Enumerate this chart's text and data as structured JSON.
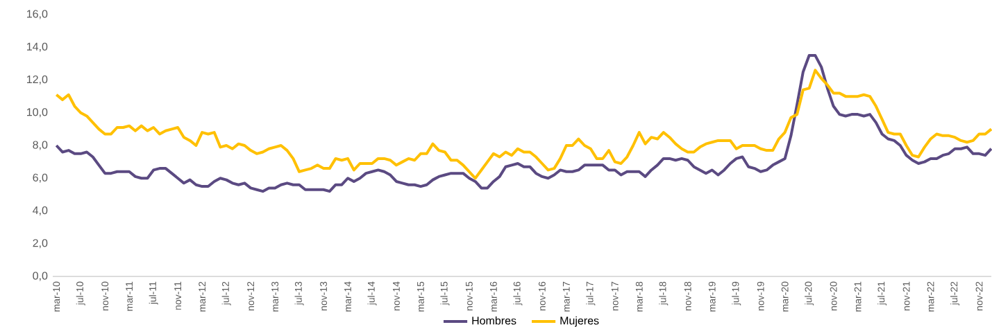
{
  "chart_data": {
    "type": "line",
    "categories": [
      "mar-10",
      null,
      null,
      null,
      "jul-10",
      null,
      null,
      null,
      "nov-10",
      null,
      null,
      null,
      "mar-11",
      null,
      null,
      null,
      "jul-11",
      null,
      null,
      null,
      "nov-11",
      null,
      null,
      null,
      "mar-12",
      null,
      null,
      null,
      "jul-12",
      null,
      null,
      null,
      "nov-12",
      null,
      null,
      null,
      "mar-13",
      null,
      null,
      null,
      "jul-13",
      null,
      null,
      null,
      "nov-13",
      null,
      null,
      null,
      "mar-14",
      null,
      null,
      null,
      "jul-14",
      null,
      null,
      null,
      "nov-14",
      null,
      null,
      null,
      "mar-15",
      null,
      null,
      null,
      "jul-15",
      null,
      null,
      null,
      "nov-15",
      null,
      null,
      null,
      "mar-16",
      null,
      null,
      null,
      "jul-16",
      null,
      null,
      null,
      "nov-16",
      null,
      null,
      null,
      "mar-17",
      null,
      null,
      null,
      "jul-17",
      null,
      null,
      null,
      "nov-17",
      null,
      null,
      null,
      "mar-18",
      null,
      null,
      null,
      "jul-18",
      null,
      null,
      null,
      "nov-18",
      null,
      null,
      null,
      "mar-19",
      null,
      null,
      null,
      "jul-19",
      null,
      null,
      null,
      "nov-19",
      null,
      null,
      null,
      "mar-20",
      null,
      null,
      null,
      "jul-20",
      null,
      null,
      null,
      "nov-20",
      null,
      null,
      null,
      "mar-21",
      null,
      null,
      null,
      "jul-21",
      null,
      null,
      null,
      "nov-21",
      null,
      null,
      null,
      "mar-22",
      null,
      null,
      null,
      "jul-22",
      null,
      null,
      null,
      "nov-22",
      null,
      null
    ],
    "series": [
      {
        "name": "Hombres",
        "color": "#5b4a82",
        "values": [
          8.0,
          7.6,
          7.7,
          7.5,
          7.5,
          7.6,
          7.3,
          6.8,
          6.3,
          6.3,
          6.4,
          6.4,
          6.4,
          6.1,
          6.0,
          6.0,
          6.5,
          6.6,
          6.6,
          6.3,
          6.0,
          5.7,
          5.9,
          5.6,
          5.5,
          5.5,
          5.8,
          6.0,
          5.9,
          5.7,
          5.6,
          5.7,
          5.4,
          5.3,
          5.2,
          5.4,
          5.4,
          5.6,
          5.7,
          5.6,
          5.6,
          5.3,
          5.3,
          5.3,
          5.3,
          5.2,
          5.6,
          5.6,
          6.0,
          5.8,
          6.0,
          6.3,
          6.4,
          6.5,
          6.4,
          6.2,
          5.8,
          5.7,
          5.6,
          5.6,
          5.5,
          5.6,
          5.9,
          6.1,
          6.2,
          6.3,
          6.3,
          6.3,
          6.0,
          5.8,
          5.4,
          5.4,
          5.8,
          6.1,
          6.7,
          6.8,
          6.9,
          6.7,
          6.7,
          6.3,
          6.1,
          6.0,
          6.2,
          6.5,
          6.4,
          6.4,
          6.5,
          6.8,
          6.8,
          6.8,
          6.8,
          6.5,
          6.5,
          6.2,
          6.4,
          6.4,
          6.4,
          6.1,
          6.5,
          6.8,
          7.2,
          7.2,
          7.1,
          7.2,
          7.1,
          6.7,
          6.5,
          6.3,
          6.5,
          6.2,
          6.5,
          6.9,
          7.2,
          7.3,
          6.7,
          6.6,
          6.4,
          6.5,
          6.8,
          7.0,
          7.2,
          8.6,
          10.5,
          12.5,
          13.5,
          13.5,
          12.8,
          11.5,
          10.4,
          9.9,
          9.8,
          9.9,
          9.9,
          9.8,
          9.9,
          9.4,
          8.7,
          8.4,
          8.3,
          8.0,
          7.4,
          7.1,
          6.9,
          7.0,
          7.2,
          7.2,
          7.4,
          7.5,
          7.8,
          7.8,
          7.9,
          7.5,
          7.5,
          7.4,
          7.8
        ]
      },
      {
        "name": "Mujeres",
        "color": "#ffc000",
        "values": [
          11.1,
          10.8,
          11.1,
          10.4,
          10.0,
          9.8,
          9.4,
          9.0,
          8.7,
          8.7,
          9.1,
          9.1,
          9.2,
          8.9,
          9.2,
          8.9,
          9.1,
          8.7,
          8.9,
          9.0,
          9.1,
          8.5,
          8.3,
          8.0,
          8.8,
          8.7,
          8.8,
          7.9,
          8.0,
          7.8,
          8.1,
          8.0,
          7.7,
          7.5,
          7.6,
          7.8,
          7.9,
          8.0,
          7.7,
          7.2,
          6.4,
          6.5,
          6.6,
          6.8,
          6.6,
          6.6,
          7.2,
          7.1,
          7.2,
          6.5,
          6.9,
          6.9,
          6.9,
          7.2,
          7.2,
          7.1,
          6.8,
          7.0,
          7.2,
          7.1,
          7.5,
          7.5,
          8.1,
          7.7,
          7.6,
          7.1,
          7.1,
          6.8,
          6.4,
          6.0,
          6.5,
          7.0,
          7.5,
          7.3,
          7.6,
          7.4,
          7.8,
          7.6,
          7.6,
          7.3,
          6.9,
          6.5,
          6.6,
          7.2,
          8.0,
          8.0,
          8.4,
          8.0,
          7.8,
          7.2,
          7.2,
          7.7,
          7.0,
          6.9,
          7.3,
          8.0,
          8.8,
          8.1,
          8.5,
          8.4,
          8.8,
          8.5,
          8.1,
          7.8,
          7.6,
          7.6,
          7.9,
          8.1,
          8.2,
          8.3,
          8.3,
          8.3,
          7.8,
          8.0,
          8.0,
          8.0,
          7.8,
          7.7,
          7.7,
          8.4,
          8.8,
          9.7,
          9.9,
          11.4,
          11.5,
          12.6,
          12.1,
          11.7,
          11.2,
          11.2,
          11.0,
          11.0,
          11.0,
          11.1,
          11.0,
          10.4,
          9.6,
          8.8,
          8.7,
          8.7,
          8.0,
          7.4,
          7.3,
          7.9,
          8.4,
          8.7,
          8.6,
          8.6,
          8.5,
          8.3,
          8.2,
          8.3,
          8.7,
          8.7,
          9.0
        ]
      }
    ],
    "ylim": [
      0,
      16
    ],
    "yticks": [
      {
        "value": 0,
        "label": "0,0"
      },
      {
        "value": 2,
        "label": "2,0"
      },
      {
        "value": 4,
        "label": "4,0"
      },
      {
        "value": 6,
        "label": "6,0"
      },
      {
        "value": 8,
        "label": "8,0"
      },
      {
        "value": 10,
        "label": "10,0"
      },
      {
        "value": 12,
        "label": "12,0"
      },
      {
        "value": 14,
        "label": "14,0"
      },
      {
        "value": 16,
        "label": "16,0"
      }
    ],
    "legend": "bottom"
  }
}
